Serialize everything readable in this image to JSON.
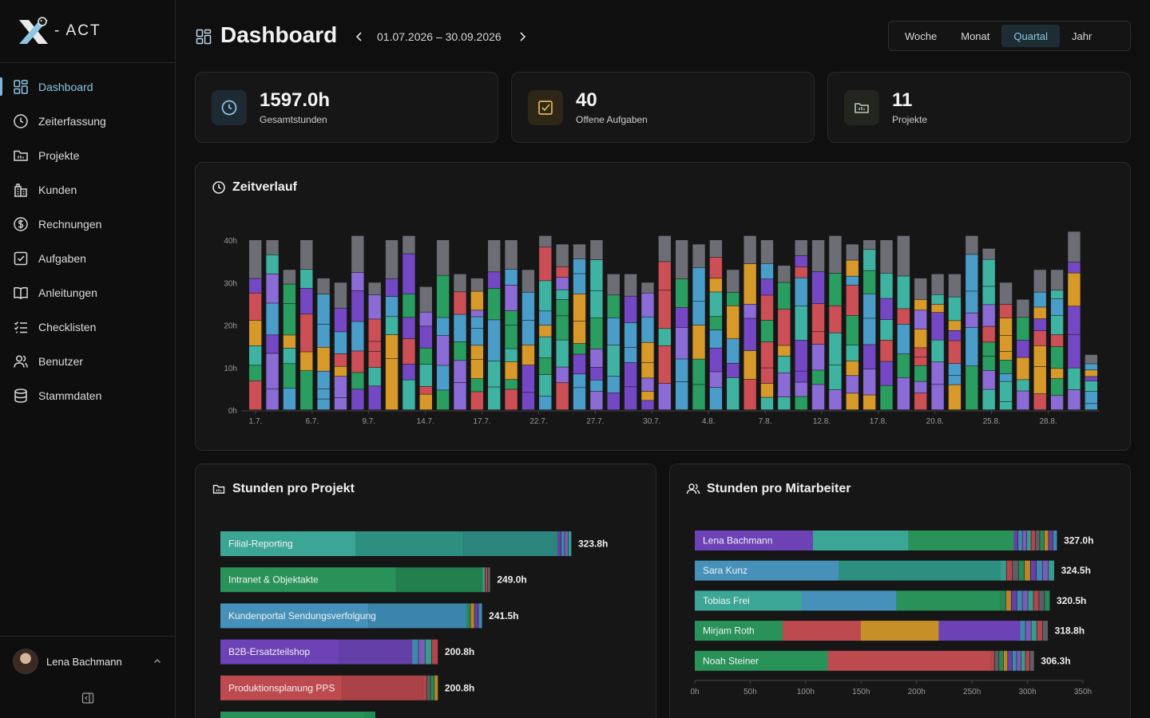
{
  "brand": {
    "logo_text": "- ACT"
  },
  "colors": {
    "accent": "#8cc6e4",
    "series": [
      "#7447c4",
      "#3fb3a2",
      "#2a9d60",
      "#4a9cc9",
      "#cc4f55",
      "#d79a2a",
      "#8b6bd6",
      "#6b6b74"
    ]
  },
  "sidebar": {
    "items": [
      {
        "label": "Dashboard",
        "icon": "dashboard-icon",
        "active": true
      },
      {
        "label": "Zeiterfassung",
        "icon": "clock-icon"
      },
      {
        "label": "Projekte",
        "icon": "folder-icon"
      },
      {
        "label": "Kunden",
        "icon": "building-icon"
      },
      {
        "label": "Rechnungen",
        "icon": "dollar-icon"
      },
      {
        "label": "Aufgaben",
        "icon": "checkbox-icon"
      },
      {
        "label": "Anleitungen",
        "icon": "book-icon"
      },
      {
        "label": "Checklisten",
        "icon": "checklist-icon"
      },
      {
        "label": "Benutzer",
        "icon": "users-icon"
      },
      {
        "label": "Stammdaten",
        "icon": "database-icon"
      }
    ],
    "user": {
      "name": "Lena Bachmann"
    }
  },
  "header": {
    "title": "Dashboard",
    "date_range": "01.07.2026 – 30.09.2026",
    "periods": [
      "Woche",
      "Monat",
      "Quartal",
      "Jahr"
    ],
    "active_period": "Quartal"
  },
  "stats": [
    {
      "value": "1597.0h",
      "label": "Gesamtstunden",
      "icon": "clock-icon"
    },
    {
      "value": "40",
      "label": "Offene Aufgaben",
      "icon": "checkbox-icon"
    },
    {
      "value": "11",
      "label": "Projekte",
      "icon": "folder-icon"
    }
  ],
  "timeline": {
    "title": "Zeitverlauf",
    "chart_data": {
      "type": "bar",
      "stacked": true,
      "ylim": [
        0,
        40
      ],
      "yticks": [
        "0h",
        "10h",
        "20h",
        "30h",
        "40h"
      ],
      "xticks": [
        "1.7.",
        "6.7.",
        "9.7.",
        "14.7.",
        "17.7.",
        "22.7.",
        "27.7.",
        "30.7.",
        "4.8.",
        "7.8.",
        "12.8.",
        "17.8.",
        "20.8.",
        "25.8.",
        "28.8."
      ],
      "totals": [
        40,
        40,
        33,
        40,
        31,
        30,
        41,
        30,
        40,
        41,
        29,
        40,
        32,
        31,
        40,
        40,
        33,
        41,
        39,
        39,
        40,
        32,
        32,
        30,
        41,
        40,
        39,
        40,
        33,
        41,
        40,
        34,
        40,
        40,
        41,
        39,
        40,
        40,
        41,
        31,
        32,
        32,
        41,
        38,
        30,
        26,
        33,
        33,
        42,
        13
      ],
      "grid": false
    }
  },
  "projects": {
    "title": "Stunden pro Projekt",
    "chart_data": {
      "type": "bar",
      "orientation": "horizontal",
      "stacked": true,
      "categories": [
        "Filial-Reporting",
        "Intranet & Objektakte",
        "Kundenportal Sendungsverfolgung",
        "B2B-Ersatzteilshop",
        "Produktionsplanung PPS"
      ],
      "values": [
        323.8,
        249.0,
        241.5,
        200.8,
        200.8
      ],
      "value_labels": [
        "323.8h",
        "249.0h",
        "241.5h",
        "200.8h",
        "200.8h"
      ]
    }
  },
  "employees": {
    "title": "Stunden pro Mitarbeiter",
    "chart_data": {
      "type": "bar",
      "orientation": "horizontal",
      "stacked": true,
      "categories": [
        "Lena Bachmann",
        "Sara Kunz",
        "Tobias Frei",
        "Mirjam Roth",
        "Noah Steiner"
      ],
      "values": [
        327.0,
        324.5,
        320.5,
        318.8,
        306.3
      ],
      "value_labels": [
        "327.0h",
        "324.5h",
        "320.5h",
        "318.8h",
        "306.3h"
      ],
      "xlim": [
        0,
        350
      ],
      "xticks": [
        "0h",
        "50h",
        "100h",
        "150h",
        "200h",
        "250h",
        "300h",
        "350h"
      ]
    }
  }
}
